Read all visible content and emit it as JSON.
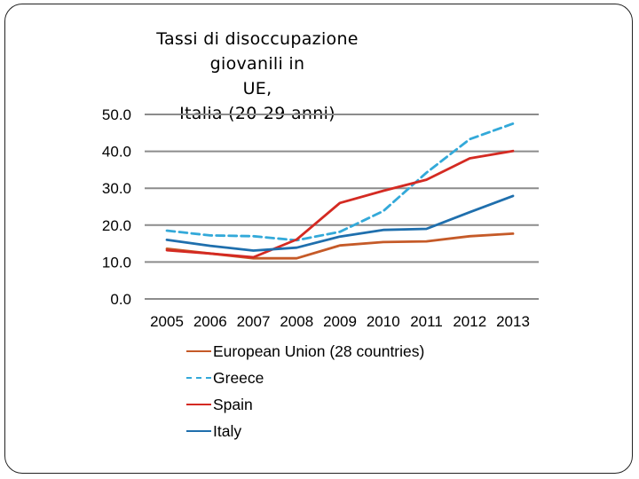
{
  "chart_data": {
    "type": "line",
    "title_lines": [
      "Tassi di disoccupazione giovanili in",
      "UE,",
      "Italia (20-29 anni)"
    ],
    "categories": [
      "2005",
      "2006",
      "2007",
      "2008",
      "2009",
      "2010",
      "2011",
      "2012",
      "2013"
    ],
    "y_ticks": [
      "0.0",
      "10.0",
      "20.0",
      "30.0",
      "40.0",
      "50.0"
    ],
    "ylim": [
      0,
      50
    ],
    "grid": true,
    "legend_position": "bottom",
    "series": [
      {
        "name": "European Union (28 countries)",
        "color": "#c55a28",
        "dashed": false,
        "values": [
          13.6,
          12.3,
          11.0,
          11.0,
          14.5,
          15.4,
          15.6,
          17.0,
          17.7
        ]
      },
      {
        "name": "Greece",
        "color": "#33a9d9",
        "dashed": true,
        "values": [
          18.5,
          17.2,
          17.0,
          15.9,
          18.2,
          23.8,
          34.2,
          43.3,
          47.5
        ]
      },
      {
        "name": "Spain",
        "color": "#d42a22",
        "dashed": false,
        "values": [
          13.2,
          12.3,
          11.3,
          16.1,
          26.0,
          29.3,
          32.3,
          38.1,
          40.1
        ]
      },
      {
        "name": "Italy",
        "color": "#1f6fad",
        "dashed": false,
        "values": [
          16.0,
          14.4,
          13.1,
          13.9,
          16.9,
          18.7,
          19.0,
          23.5,
          27.9
        ]
      }
    ]
  }
}
